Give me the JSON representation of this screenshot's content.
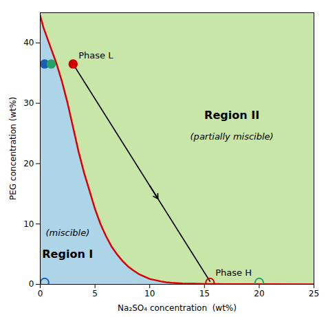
{
  "chart_data": {
    "type": "line",
    "x_label": "Na₂SO₄ concentration  (wt%)",
    "y_label": "PEG concentration (wt%)",
    "xlim": [
      0,
      25
    ],
    "ylim": [
      0,
      45
    ],
    "xticks": [
      0,
      5,
      10,
      15,
      20,
      25
    ],
    "yticks": [
      0,
      10,
      20,
      30,
      40
    ],
    "curve": {
      "color": "#dd0000",
      "x": [
        0.0,
        0.3,
        0.6,
        1.0,
        1.5,
        2.0,
        2.5,
        3.0,
        3.5,
        4.0,
        4.5,
        5.0,
        5.5,
        6.0,
        6.5,
        7.0,
        7.5,
        8.0,
        8.5,
        9.0,
        9.5,
        10.0,
        10.5,
        11.0,
        11.5,
        12.0,
        13.0,
        14.0,
        15.0,
        16.0,
        17.0,
        18.0,
        20.0,
        25.0
      ],
      "y": [
        44.5,
        42.5,
        41.0,
        39.0,
        36.5,
        33.5,
        30.0,
        26.0,
        22.0,
        18.5,
        15.5,
        12.5,
        10.0,
        8.0,
        6.3,
        5.0,
        3.9,
        3.0,
        2.3,
        1.7,
        1.3,
        0.9,
        0.7,
        0.5,
        0.35,
        0.25,
        0.15,
        0.1,
        0.07,
        0.05,
        0.04,
        0.03,
        0.02,
        0.01
      ]
    },
    "regions": [
      {
        "name": "Region I",
        "note": "(miscible)",
        "color": "#aed4e8",
        "name_at": [
          2.5,
          5.0
        ],
        "note_at": [
          2.5,
          8.5
        ]
      },
      {
        "name": "Region II",
        "note": "(partially miscible)",
        "color": "#c8e6a8",
        "name_at": [
          17.5,
          28
        ],
        "note_at": [
          17.5,
          24.5
        ]
      }
    ],
    "tie_line": {
      "from": [
        3.0,
        36.5
      ],
      "to": [
        15.5,
        0.5
      ],
      "color": "black",
      "marker": "arrow"
    },
    "points": [
      {
        "x": 0.4,
        "y": 36.5,
        "color": "#1a5fb4",
        "marker": "filled"
      },
      {
        "x": 1.0,
        "y": 36.5,
        "color": "#26a269",
        "marker": "filled"
      },
      {
        "x": 3.0,
        "y": 36.5,
        "color": "#cc0000",
        "marker": "filled"
      },
      {
        "x": 0.4,
        "y": 0.3,
        "color": "#1a5fb4",
        "marker": "open"
      },
      {
        "x": 15.5,
        "y": 0.3,
        "color": "#cc0000",
        "marker": "open"
      },
      {
        "x": 20.0,
        "y": 0.3,
        "color": "#26a269",
        "marker": "open"
      }
    ],
    "annotations": [
      {
        "text": "Phase L",
        "x": 3.0,
        "y": 36.5
      },
      {
        "text": "Phase H",
        "x": 15.5,
        "y": 0.5
      }
    ]
  }
}
